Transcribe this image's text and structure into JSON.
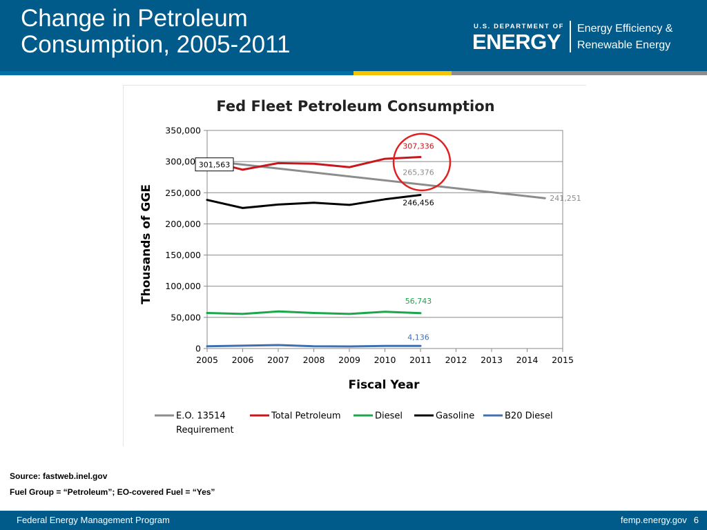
{
  "slide": {
    "title_line1": "Change in Petroleum",
    "title_line2": "Consumption, 2005-2011"
  },
  "logo": {
    "dept_small": "U.S. DEPARTMENT OF",
    "dept_big": "ENERGY",
    "office_line1": "Energy Efficiency &",
    "office_line2": "Renewable Energy"
  },
  "colors": {
    "header_blue": "#005b8a",
    "stripe_blue": "#0070a8",
    "stripe_yellow": "#f2c500",
    "stripe_gray": "#8c8c8c"
  },
  "source": {
    "line1": "Source: fastweb.inel.gov",
    "line2": "Fuel Group = “Petroleum”; EO-covered Fuel = “Yes”"
  },
  "footer": {
    "program": "Federal Energy Management Program",
    "website": "femp.energy.gov",
    "page_number": "6"
  },
  "chart_data": {
    "type": "line",
    "title": "Fed Fleet Petroleum Consumption",
    "xlabel": "Fiscal Year",
    "ylabel": "Thousands of GGE",
    "xlim": [
      2005,
      2015
    ],
    "ylim": [
      0,
      350000
    ],
    "x_ticks": [
      "2005",
      "2006",
      "2007",
      "2008",
      "2009",
      "2010",
      "2011",
      "2012",
      "2013",
      "2014",
      "2015"
    ],
    "y_ticks": [
      "0",
      "50,000",
      "100,000",
      "150,000",
      "200,000",
      "250,000",
      "300,000",
      "350,000"
    ],
    "y_tick_values": [
      0,
      50000,
      100000,
      150000,
      200000,
      250000,
      300000,
      350000
    ],
    "grid": "horizontal",
    "legend_position": "bottom",
    "series": [
      {
        "name": "E.O. 13514 Requirement",
        "color": "#8c8c8c",
        "x": [
          2005,
          2014.5
        ],
        "values": [
          301563,
          241251
        ]
      },
      {
        "name": "Total Petroleum",
        "color": "#c8161d",
        "x": [
          2005,
          2006,
          2007,
          2008,
          2009,
          2010,
          2011
        ],
        "values": [
          301563,
          287000,
          297500,
          296500,
          291000,
          304500,
          307336
        ]
      },
      {
        "name": "Diesel",
        "color": "#1aa64a",
        "x": [
          2005,
          2006,
          2007,
          2008,
          2009,
          2010,
          2011
        ],
        "values": [
          57000,
          55500,
          59500,
          57000,
          55500,
          59000,
          56743
        ]
      },
      {
        "name": "Gasoline",
        "color": "#000000",
        "x": [
          2005,
          2006,
          2007,
          2008,
          2009,
          2010,
          2011
        ],
        "values": [
          238500,
          225500,
          231000,
          234000,
          230500,
          239500,
          246456
        ]
      },
      {
        "name": "B20 Diesel",
        "color": "#3f6fb0",
        "x": [
          2005,
          2006,
          2007,
          2008,
          2009,
          2010,
          2011
        ],
        "values": [
          3500,
          4500,
          5500,
          3500,
          3300,
          4200,
          4136
        ]
      }
    ],
    "annotations": [
      {
        "text": "301,563",
        "x": 2005,
        "y": 301563,
        "boxed": true,
        "color": "#000000"
      },
      {
        "text": "307,336",
        "x": 2011,
        "y": 307336,
        "color": "#c8161d"
      },
      {
        "text": "265,376",
        "x": 2011,
        "y": 265376,
        "color": "#8c8c8c"
      },
      {
        "text": "246,456",
        "x": 2011,
        "y": 246456,
        "color": "#000000"
      },
      {
        "text": "241,251",
        "x": 2014.5,
        "y": 241251,
        "color": "#8c8c8c"
      },
      {
        "text": "56,743",
        "x": 2011,
        "y": 56743,
        "color": "#1aa64a"
      },
      {
        "text": "4,136",
        "x": 2011,
        "y": 4136,
        "color": "#3f6fb0"
      }
    ],
    "highlight": {
      "x": 2011,
      "y": 287000,
      "color": "#e02020"
    }
  }
}
